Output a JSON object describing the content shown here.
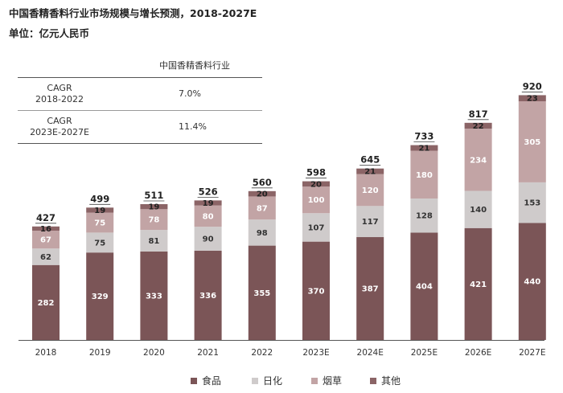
{
  "title": "中国香精香料行业市场规模与增长预测，2018-2027E",
  "unit": "单位：亿元人民币",
  "cagr_table": {
    "header": "中国香精香料行业",
    "rows": [
      {
        "label_line1": "CAGR",
        "label_line2": "2018-2022",
        "value": "7.0%"
      },
      {
        "label_line1": "CAGR",
        "label_line2": "2023E-2027E",
        "value": "11.4%"
      }
    ]
  },
  "colors": {
    "食品": "#7b5557",
    "日化": "#cfcbcb",
    "烟草": "#c2a4a5",
    "其他": "#8b6466"
  },
  "chart_data": {
    "type": "bar",
    "stacked": true,
    "categories": [
      "2018",
      "2019",
      "2020",
      "2021",
      "2022",
      "2023E",
      "2024E",
      "2025E",
      "2026E",
      "2027E"
    ],
    "series": [
      {
        "name": "食品",
        "values": [
          282,
          329,
          333,
          336,
          355,
          370,
          387,
          404,
          421,
          440
        ]
      },
      {
        "name": "日化",
        "values": [
          62,
          75,
          81,
          90,
          98,
          107,
          117,
          128,
          140,
          153
        ]
      },
      {
        "name": "烟草",
        "values": [
          67,
          75,
          78,
          80,
          87,
          100,
          120,
          180,
          234,
          305
        ]
      },
      {
        "name": "其他",
        "values": [
          16,
          19,
          19,
          19,
          20,
          20,
          21,
          21,
          22,
          23
        ]
      }
    ],
    "totals": [
      427,
      499,
      511,
      526,
      560,
      598,
      645,
      733,
      817,
      920
    ],
    "legend_position": "bottom",
    "grid": false
  }
}
